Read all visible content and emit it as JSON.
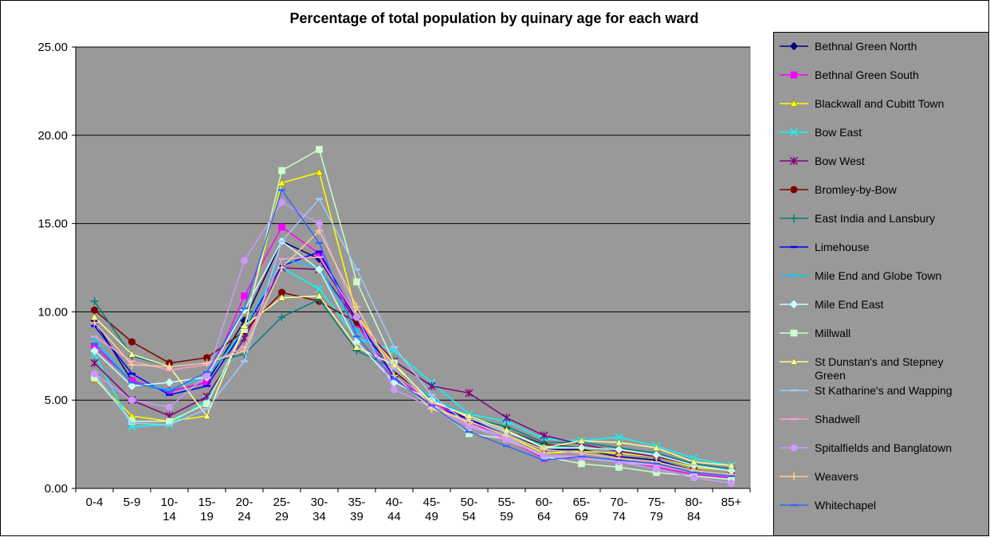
{
  "chart_data": {
    "type": "line",
    "title": "Percentage of total population by quinary age for each ward",
    "xlabel": "",
    "ylabel": "",
    "ylim": [
      0,
      25
    ],
    "yticks": [
      "0.00",
      "5.00",
      "10.00",
      "15.00",
      "20.00",
      "25.00"
    ],
    "grid": true,
    "legend_position": "right",
    "categories": [
      [
        "0-4"
      ],
      [
        "5-9"
      ],
      [
        "10-",
        "14"
      ],
      [
        "15-",
        "19"
      ],
      [
        "20-",
        "24"
      ],
      [
        "25-",
        "29"
      ],
      [
        "30-",
        "34"
      ],
      [
        "35-",
        "39"
      ],
      [
        "40-",
        "44"
      ],
      [
        "45-",
        "49"
      ],
      [
        "50-",
        "54"
      ],
      [
        "55-",
        "59"
      ],
      [
        "60-",
        "64"
      ],
      [
        "65-",
        "69"
      ],
      [
        "70-",
        "74"
      ],
      [
        "75-",
        "79"
      ],
      [
        "80-",
        "84"
      ],
      [
        "85+"
      ]
    ],
    "series": [
      {
        "name": "Bethnal Green North",
        "color": "#000080",
        "marker": "diamond",
        "values": [
          9.5,
          6.1,
          5.5,
          6.0,
          9.5,
          14.0,
          13.0,
          9.6,
          6.3,
          4.9,
          4.0,
          3.2,
          2.2,
          2.2,
          1.8,
          1.6,
          1.0,
          0.8
        ]
      },
      {
        "name": "Bethnal Green South",
        "color": "#ff00ff",
        "marker": "square",
        "values": [
          8.0,
          6.1,
          5.5,
          6.0,
          10.9,
          14.8,
          13.3,
          9.3,
          6.3,
          4.9,
          3.8,
          2.8,
          1.7,
          1.7,
          1.6,
          1.2,
          0.8,
          0.6
        ]
      },
      {
        "name": "Blackwall and Cubitt Town",
        "color": "#ffff00",
        "marker": "triangle",
        "values": [
          6.2,
          4.1,
          3.8,
          4.1,
          9.2,
          17.3,
          17.9,
          9.8,
          7.0,
          4.6,
          3.8,
          3.0,
          2.0,
          2.1,
          2.0,
          1.8,
          1.2,
          1.0
        ]
      },
      {
        "name": "Bow East",
        "color": "#00ffff",
        "marker": "x",
        "values": [
          7.6,
          3.5,
          3.6,
          5.0,
          8.5,
          12.5,
          11.3,
          8.5,
          7.8,
          6.0,
          4.2,
          3.8,
          2.8,
          2.7,
          2.9,
          2.4,
          1.7,
          1.3
        ]
      },
      {
        "name": "Bow West",
        "color": "#800080",
        "marker": "star",
        "values": [
          7.1,
          5.0,
          4.1,
          5.2,
          8.5,
          12.5,
          12.4,
          9.5,
          7.2,
          5.8,
          5.4,
          4.0,
          3.0,
          2.5,
          2.1,
          1.8,
          1.3,
          1.0
        ]
      },
      {
        "name": "Bromley-by-Bow",
        "color": "#800000",
        "marker": "circle",
        "values": [
          10.1,
          8.3,
          7.1,
          7.4,
          8.9,
          11.1,
          10.6,
          9.4,
          6.6,
          5.0,
          3.9,
          3.3,
          2.5,
          2.3,
          2.2,
          1.9,
          1.3,
          1.0
        ]
      },
      {
        "name": "East India and Lansbury",
        "color": "#008080",
        "marker": "plus",
        "values": [
          10.6,
          7.5,
          6.9,
          7.1,
          7.6,
          9.7,
          10.7,
          7.8,
          6.8,
          5.0,
          4.0,
          3.5,
          2.6,
          2.6,
          2.3,
          2.0,
          1.4,
          1.1
        ]
      },
      {
        "name": "Limehouse",
        "color": "#0000ff",
        "marker": "dash",
        "values": [
          9.2,
          6.5,
          5.3,
          5.8,
          9.0,
          12.6,
          13.4,
          9.6,
          6.3,
          4.7,
          3.9,
          3.0,
          2.2,
          2.0,
          1.7,
          1.5,
          1.0,
          0.8
        ]
      },
      {
        "name": "Mile End and Globe Town",
        "color": "#00ccff",
        "marker": "dash",
        "values": [
          8.5,
          6.0,
          5.6,
          6.3,
          9.0,
          13.0,
          12.5,
          9.0,
          6.7,
          5.1,
          4.1,
          3.3,
          2.4,
          2.3,
          2.2,
          1.9,
          1.3,
          1.0
        ]
      },
      {
        "name": "Mile End East",
        "color": "#ccffff",
        "marker": "diamond",
        "values": [
          7.8,
          5.8,
          6.0,
          6.3,
          10.1,
          14.0,
          12.4,
          8.3,
          6.0,
          5.0,
          4.0,
          3.2,
          2.3,
          2.3,
          2.2,
          1.9,
          1.3,
          1.0
        ]
      },
      {
        "name": "Millwall",
        "color": "#ccffcc",
        "marker": "square",
        "values": [
          6.3,
          3.8,
          3.8,
          4.8,
          9.0,
          18.0,
          19.2,
          11.7,
          7.1,
          4.8,
          3.1,
          2.8,
          1.8,
          1.4,
          1.2,
          0.9,
          0.7,
          0.5
        ]
      },
      {
        "name": "St Dunstan's and Stepney Green",
        "color": "#ffff99",
        "marker": "triangle",
        "values": [
          9.7,
          7.6,
          6.9,
          4.1,
          9.2,
          10.8,
          10.9,
          8.0,
          7.0,
          4.9,
          4.1,
          3.3,
          2.3,
          2.7,
          2.6,
          2.3,
          1.5,
          1.3
        ]
      },
      {
        "name": "St Katharine's and Wapping",
        "color": "#99ccff",
        "marker": "dash",
        "values": [
          6.5,
          3.7,
          3.6,
          4.5,
          7.2,
          14.0,
          16.4,
          12.4,
          8.0,
          5.3,
          3.6,
          2.9,
          1.8,
          1.7,
          1.5,
          1.3,
          0.9,
          0.7
        ]
      },
      {
        "name": "Shadwell",
        "color": "#ff99cc",
        "marker": "dash",
        "values": [
          8.6,
          7.2,
          6.7,
          7.0,
          8.0,
          13.0,
          13.1,
          9.7,
          6.8,
          4.8,
          3.6,
          2.7,
          1.9,
          1.7,
          1.6,
          1.3,
          0.9,
          0.7
        ]
      },
      {
        "name": "Spitalfields and Banglatown",
        "color": "#cc99ff",
        "marker": "circle",
        "values": [
          6.5,
          5.0,
          4.6,
          6.4,
          12.9,
          16.2,
          15.0,
          9.7,
          5.6,
          4.6,
          3.5,
          2.8,
          1.9,
          1.8,
          1.5,
          1.1,
          0.6,
          0.3
        ]
      },
      {
        "name": "Weavers",
        "color": "#ffcc99",
        "marker": "plus",
        "values": [
          9.4,
          7.0,
          6.9,
          7.1,
          7.8,
          12.5,
          14.6,
          10.3,
          6.4,
          4.5,
          3.8,
          3.0,
          2.2,
          2.0,
          1.7,
          1.5,
          1.0,
          0.8
        ]
      },
      {
        "name": "Whitechapel",
        "color": "#3366ff",
        "marker": "dash",
        "values": [
          8.2,
          6.0,
          5.5,
          6.6,
          10.2,
          16.9,
          13.9,
          8.6,
          6.2,
          4.7,
          3.2,
          2.4,
          1.6,
          1.8,
          1.6,
          1.4,
          0.9,
          0.7
        ]
      }
    ]
  }
}
